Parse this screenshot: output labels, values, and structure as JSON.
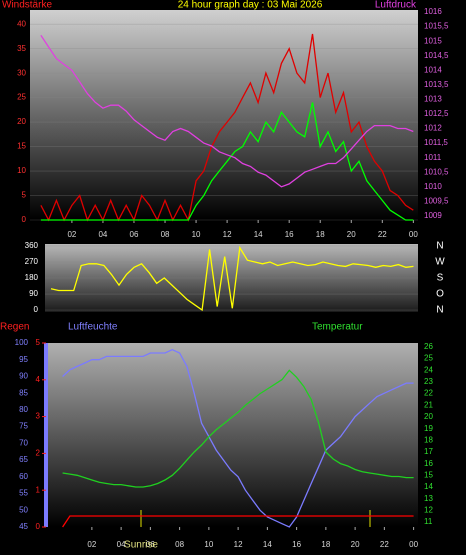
{
  "chart_data": [
    {
      "type": "line",
      "title": "24 hour graph day : 03 Mai 2026",
      "y_label": "Windstärke",
      "y2_label": "Luftdruck",
      "x": [
        0,
        0.5,
        1,
        1.5,
        2,
        2.5,
        3,
        3.5,
        4,
        4.5,
        5,
        5.5,
        6,
        6.5,
        7,
        7.5,
        8,
        8.5,
        9,
        9.5,
        10,
        10.5,
        11,
        11.5,
        12,
        12.5,
        13,
        13.5,
        14,
        14.5,
        15,
        15.5,
        16,
        16.5,
        17,
        17.5,
        18,
        18.5,
        19,
        19.5,
        20,
        20.5,
        21,
        21.5,
        22,
        22.5,
        23,
        23.5,
        24
      ],
      "xlim": [
        -0.7,
        24.3
      ],
      "xticks": [
        {
          "value": 2,
          "label": "02"
        },
        {
          "value": 4,
          "label": "04"
        },
        {
          "value": 6,
          "label": "06"
        },
        {
          "value": 8,
          "label": "08"
        },
        10,
        12,
        14,
        16,
        18,
        20,
        22,
        {
          "value": 24,
          "label": "00"
        }
      ],
      "ylim": [
        0,
        42.9
      ],
      "yticks": [
        0,
        5,
        10,
        15,
        20,
        25,
        30,
        35,
        40
      ],
      "y2lim": [
        1008.86,
        1016.07
      ],
      "y2ticks": [
        1009,
        {
          "value": 1009.5,
          "label": "1009,5"
        },
        1010,
        {
          "value": 1010.5,
          "label": "1010,5"
        },
        1011,
        {
          "value": 1011.5,
          "label": "1011,5"
        },
        1012,
        {
          "value": 1012.5,
          "label": "1012,5"
        },
        1013,
        {
          "value": 1013.5,
          "label": "1013,5"
        },
        1014,
        {
          "value": 1014.5,
          "label": "1014,5"
        },
        1015,
        {
          "value": 1015.5,
          "label": "1015,5"
        },
        1016
      ],
      "grid": true,
      "series": [
        {
          "color": "#e00000",
          "axis": "y",
          "values": [
            3,
            0,
            4,
            0,
            3,
            5,
            0,
            3,
            0,
            4,
            0,
            3,
            0,
            5,
            3,
            0,
            4,
            0,
            3,
            0,
            8,
            10,
            15,
            18,
            20,
            22,
            25,
            28,
            24,
            30,
            26,
            32,
            35,
            30,
            28,
            38,
            25,
            30,
            22,
            26,
            18,
            20,
            15,
            12,
            10,
            6,
            5,
            3,
            2
          ]
        },
        {
          "color": "#00ff00",
          "axis": "y",
          "values": [
            0,
            0,
            0,
            0,
            0,
            0,
            0,
            0,
            0,
            0,
            0,
            0,
            0,
            0,
            0,
            0,
            0,
            0,
            0,
            0,
            3,
            5,
            8,
            10,
            12,
            14,
            15,
            18,
            16,
            20,
            18,
            22,
            20,
            18,
            17,
            24,
            15,
            18,
            14,
            16,
            10,
            12,
            8,
            6,
            4,
            2,
            1,
            0,
            0
          ]
        },
        {
          "color": "#e040e0",
          "axis": "y2",
          "values": [
            1015.2,
            1014.8,
            1014.4,
            1014.2,
            1014.0,
            1013.6,
            1013.2,
            1012.9,
            1012.7,
            1012.8,
            1012.8,
            1012.6,
            1012.3,
            1012.1,
            1011.9,
            1011.7,
            1011.6,
            1011.9,
            1012.0,
            1011.9,
            1011.7,
            1011.5,
            1011.4,
            1011.2,
            1011.1,
            1011.0,
            1010.8,
            1010.7,
            1010.5,
            1010.4,
            1010.2,
            1010.0,
            1010.1,
            1010.3,
            1010.5,
            1010.6,
            1010.7,
            1010.8,
            1010.8,
            1011.0,
            1011.3,
            1011.6,
            1011.9,
            1012.1,
            1012.1,
            1012.1,
            1012.0,
            1012.0,
            1011.9
          ]
        }
      ]
    },
    {
      "type": "line",
      "x": [
        0,
        0.5,
        1,
        1.5,
        2,
        2.5,
        3,
        3.5,
        4,
        4.5,
        5,
        5.5,
        6,
        6.5,
        7,
        7.5,
        8,
        8.5,
        9,
        9.5,
        10,
        10.5,
        11,
        11.5,
        12,
        12.5,
        13,
        13.5,
        14,
        14.5,
        15,
        15.5,
        16,
        16.5,
        17,
        17.5,
        18,
        18.5,
        19,
        19.5,
        20,
        20.5,
        21,
        21.5,
        22,
        22.5,
        23,
        23.5,
        24
      ],
      "xlim": [
        -0.4,
        24.3
      ],
      "ylim": [
        -11,
        371
      ],
      "yticks": [
        0,
        90,
        180,
        270,
        360
      ],
      "y2lim": [
        -11,
        371
      ],
      "y2ticks": [
        {
          "value": 0,
          "label": "N"
        },
        {
          "value": 90,
          "label": "O"
        },
        {
          "value": 180,
          "label": "S"
        },
        {
          "value": 270,
          "label": "W"
        },
        {
          "value": 360,
          "label": "N"
        }
      ],
      "grid": true,
      "series": [
        {
          "color": "#ffff00",
          "axis": "y",
          "values": [
            120,
            110,
            110,
            110,
            250,
            260,
            260,
            250,
            200,
            140,
            200,
            240,
            260,
            210,
            150,
            180,
            140,
            100,
            60,
            30,
            0,
            340,
            20,
            300,
            10,
            350,
            280,
            270,
            260,
            270,
            250,
            260,
            270,
            260,
            250,
            255,
            270,
            260,
            250,
            245,
            260,
            255,
            250,
            240,
            250,
            245,
            255,
            240,
            245
          ]
        }
      ]
    },
    {
      "type": "line",
      "y_label": "Luftfeuchte",
      "y2_label": "Temperatur",
      "y3_label": "Regen",
      "annotation": "Sunrise",
      "x": [
        0,
        0.5,
        1,
        1.5,
        2,
        2.5,
        3,
        3.5,
        4,
        4.5,
        5,
        5.5,
        6,
        6.5,
        7,
        7.5,
        8,
        8.5,
        9,
        9.5,
        10,
        10.5,
        11,
        11.5,
        12,
        12.5,
        13,
        13.5,
        14,
        14.5,
        15,
        15.5,
        16,
        16.5,
        17,
        17.5,
        18,
        18.5,
        19,
        19.5,
        20,
        20.5,
        21,
        21.5,
        22,
        22.5,
        23,
        23.5,
        24
      ],
      "xlim": [
        -1.0,
        24.3
      ],
      "xticks": [
        {
          "value": 2,
          "label": "02"
        },
        {
          "value": 4,
          "label": "04"
        },
        {
          "value": 6,
          "label": "06"
        },
        {
          "value": 8,
          "label": "08"
        },
        10,
        12,
        14,
        16,
        18,
        20,
        22,
        {
          "value": 24,
          "label": "00"
        }
      ],
      "ylim": [
        45,
        100
      ],
      "yticks": [
        45,
        50,
        55,
        60,
        65,
        70,
        75,
        80,
        85,
        90,
        95,
        100
      ],
      "y2lim": [
        10.57,
        26.34
      ],
      "y2ticks": [
        11,
        12,
        13,
        14,
        15,
        16,
        17,
        18,
        19,
        20,
        21,
        22,
        23,
        24,
        25,
        26
      ],
      "y3lim": [
        0,
        5
      ],
      "y3ticks": [
        0,
        1,
        2,
        3,
        4,
        5
      ],
      "grid": false,
      "series": [
        {
          "color": "#7b7bff",
          "axis": "y",
          "values": [
            90,
            92,
            93,
            94,
            95,
            95,
            96,
            96,
            96,
            96,
            96,
            96,
            97,
            97,
            97,
            98,
            97,
            93,
            85,
            76,
            72,
            68,
            65,
            62,
            60,
            56,
            53,
            50,
            48,
            47,
            46,
            45,
            48,
            53,
            58,
            63,
            68,
            70,
            72,
            75,
            78,
            80,
            82,
            84,
            85,
            86,
            87,
            88,
            88
          ]
        },
        {
          "color": "#20d020",
          "axis": "y2",
          "values": [
            15.2,
            15.1,
            15.0,
            14.8,
            14.6,
            14.4,
            14.3,
            14.2,
            14.2,
            14.1,
            14.0,
            14.0,
            14.1,
            14.3,
            14.6,
            15.0,
            15.6,
            16.3,
            17.0,
            17.6,
            18.3,
            18.9,
            19.4,
            19.9,
            20.4,
            21.0,
            21.5,
            22.0,
            22.4,
            22.8,
            23.2,
            24.0,
            23.4,
            22.6,
            21.5,
            19.5,
            17.0,
            16.4,
            16.0,
            15.8,
            15.5,
            15.3,
            15.2,
            15.1,
            15.0,
            14.9,
            14.9,
            14.8,
            14.8
          ]
        },
        {
          "color": "#ff0000",
          "axis": "y3",
          "values": [
            0,
            0.3,
            0.3,
            0.3,
            0.3,
            0.3,
            0.3,
            0.3,
            0.3,
            0.3,
            0.3,
            0.3,
            0.3,
            0.3,
            0.3,
            0.3,
            0.3,
            0.3,
            0.3,
            0.3,
            0.3,
            0.3,
            0.3,
            0.3,
            0.3,
            0.3,
            0.3,
            0.3,
            0.3,
            0.3,
            0.3,
            0.3,
            0.3,
            0.3,
            0.3,
            0.3,
            0.3,
            0.3,
            0.3,
            0.3,
            0.3,
            0.3,
            0.3,
            0.3,
            0.3,
            0.3,
            0.3,
            0.3,
            0.3
          ]
        }
      ]
    }
  ]
}
